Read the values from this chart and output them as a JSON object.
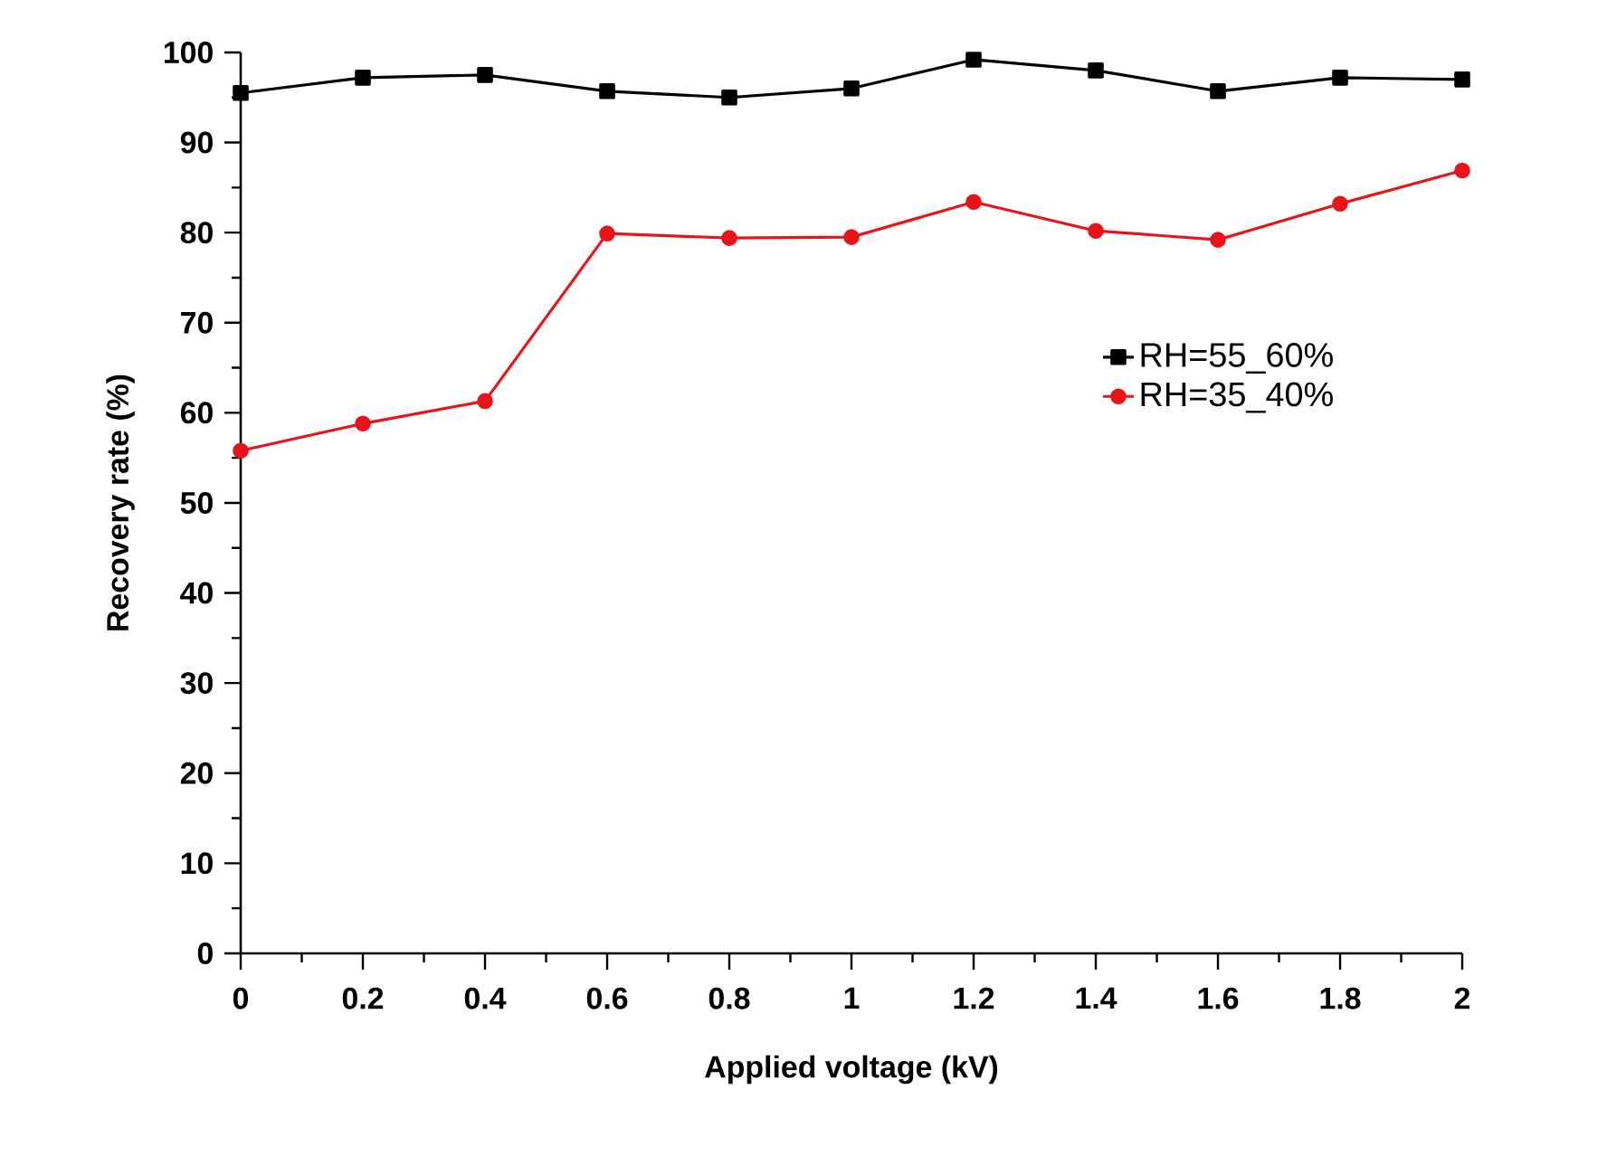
{
  "chart_data": {
    "type": "line",
    "xlabel": "Applied voltage (kV)",
    "ylabel": "Recovery rate (%)",
    "x": [
      0,
      0.2,
      0.4,
      0.6,
      0.8,
      1,
      1.2,
      1.4,
      1.6,
      1.8,
      2
    ],
    "series": [
      {
        "name": "RH=55_60%",
        "color": "#000000",
        "marker": "square",
        "values": [
          95.5,
          97.2,
          97.5,
          95.7,
          95.0,
          96.0,
          99.2,
          98.0,
          95.7,
          97.2,
          97.0
        ]
      },
      {
        "name": "RH=35_40%",
        "color": "#e8141a",
        "marker": "circle",
        "values": [
          55.8,
          58.8,
          61.3,
          79.9,
          79.4,
          79.5,
          83.4,
          80.2,
          79.2,
          83.2,
          86.9
        ]
      }
    ],
    "xlim": [
      0,
      2
    ],
    "ylim": [
      0,
      100
    ],
    "xticks": [
      0,
      0.2,
      0.4,
      0.6,
      0.8,
      1,
      1.2,
      1.4,
      1.6,
      1.8,
      2
    ],
    "yticks": [
      0,
      10,
      20,
      30,
      40,
      50,
      60,
      70,
      80,
      90,
      100
    ],
    "legend": "right",
    "grid": false,
    "line_style": "solid"
  }
}
